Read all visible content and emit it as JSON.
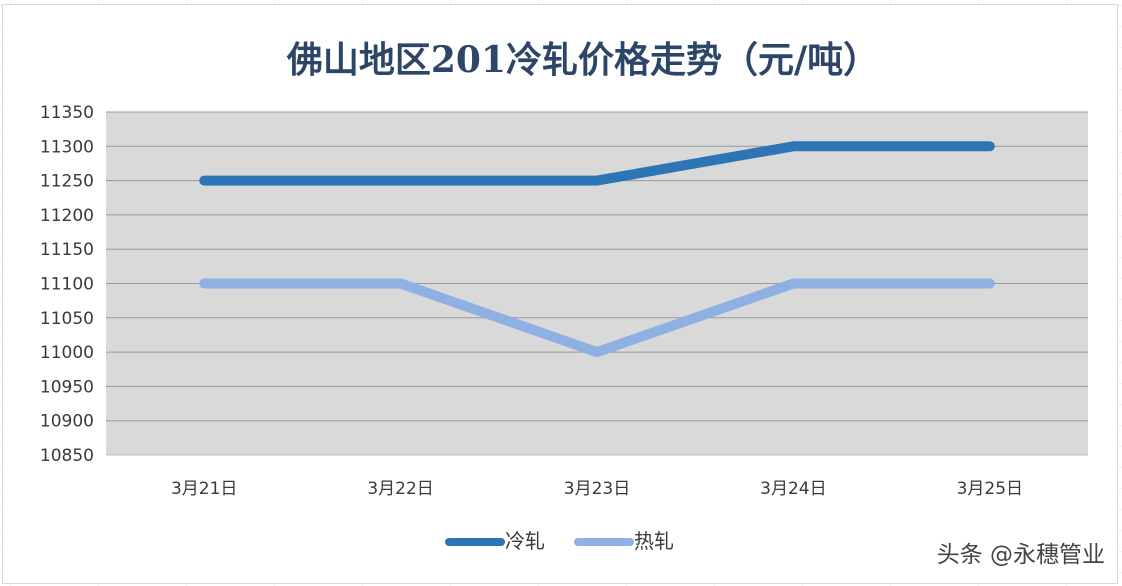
{
  "chart_data": {
    "type": "line",
    "title": "佛山地区201冷轧价格走势（元/吨）",
    "categories": [
      "3月21日",
      "3月22日",
      "3月23日",
      "3月24日",
      "3月25日"
    ],
    "series": [
      {
        "name": "冷轧",
        "values": [
          11250,
          11250,
          11250,
          11300,
          11300
        ],
        "color": "#2e75b6"
      },
      {
        "name": "热轧",
        "values": [
          11100,
          11100,
          11000,
          11100,
          11100
        ],
        "color": "#8fb0e3"
      }
    ],
    "ylim": [
      10850,
      11350
    ],
    "yticks": [
      11350,
      11300,
      11250,
      11200,
      11150,
      11100,
      11050,
      11000,
      10950,
      10900,
      10850
    ],
    "grid": true,
    "legend_position": "bottom",
    "plot_background": "#d9d9d9",
    "gridline_color": "#9a9a9a"
  },
  "watermark": "头条 @永穗管业"
}
